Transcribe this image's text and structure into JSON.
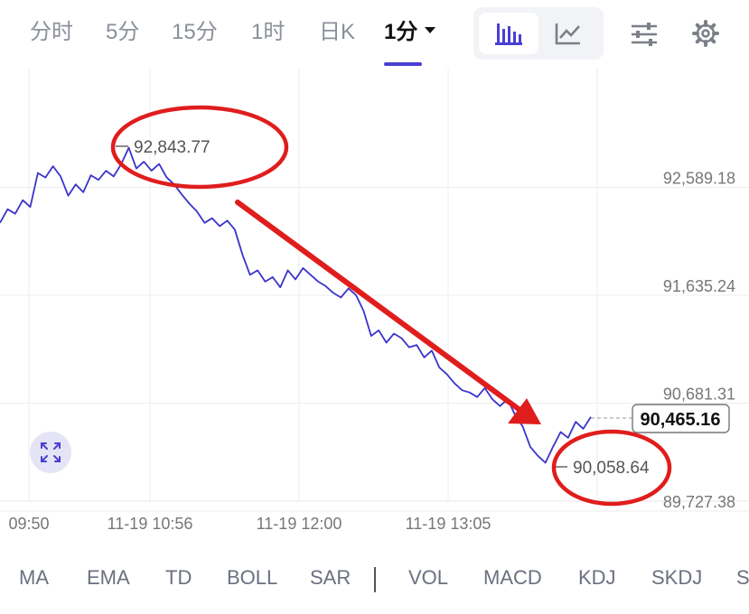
{
  "tabs": [
    {
      "label": "分时",
      "active": false
    },
    {
      "label": "5分",
      "active": false
    },
    {
      "label": "15分",
      "active": false
    },
    {
      "label": "1时",
      "active": false
    },
    {
      "label": "日K",
      "active": false
    },
    {
      "label": "1分",
      "active": true
    }
  ],
  "toolbar": {
    "candle_icon": "candlestick-bars-icon",
    "line_icon": "line-chart-icon",
    "settings_icon": "sliders-icon",
    "gear_icon": "gear-icon",
    "expand_icon": "expand-arrows-icon"
  },
  "indicators": [
    "MA",
    "EMA",
    "TD",
    "BOLL",
    "SAR",
    "VOL",
    "MACD",
    "KDJ",
    "SKDJ",
    "S"
  ],
  "colors": {
    "line": "#3b34c9",
    "accent": "#4a3fd1",
    "annotation": "#e01d1d",
    "grid": "#eeeeee",
    "text_muted": "#8a8f99"
  },
  "chart_data": {
    "type": "line",
    "y_ticks": [
      "92,589.18",
      "91,635.24",
      "90,681.31",
      "89,727.38"
    ],
    "y_tick_values": [
      92589.18,
      91635.24,
      90681.31,
      89727.38
    ],
    "x_ticks": [
      "09:50",
      "11-19 10:56",
      "11-19 12:00",
      "11-19 13:05"
    ],
    "ylim": [
      89727.38,
      93543.1
    ],
    "high_label": "92,843.77",
    "low_label": "90,058.64",
    "last_price": "90,465.16",
    "values": [
      92180,
      92300,
      92260,
      92380,
      92320,
      92620,
      92580,
      92680,
      92590,
      92420,
      92520,
      92450,
      92600,
      92560,
      92640,
      92590,
      92700,
      92844,
      92660,
      92720,
      92640,
      92700,
      92580,
      92520,
      92430,
      92350,
      92280,
      92180,
      92220,
      92150,
      92200,
      92120,
      91900,
      91720,
      91760,
      91660,
      91700,
      91610,
      91760,
      91680,
      91780,
      91720,
      91660,
      91620,
      91560,
      91520,
      91600,
      91540,
      91400,
      91180,
      91230,
      91120,
      91200,
      91160,
      91080,
      91100,
      90990,
      91050,
      90900,
      90840,
      90760,
      90700,
      90680,
      90640,
      90720,
      90620,
      90560,
      90620,
      90480,
      90380,
      90200,
      90120,
      90059,
      90200,
      90330,
      90280,
      90420,
      90360,
      90465
    ],
    "annotations": [
      "high-price-circle",
      "low-price-circle",
      "downtrend-arrow"
    ]
  }
}
